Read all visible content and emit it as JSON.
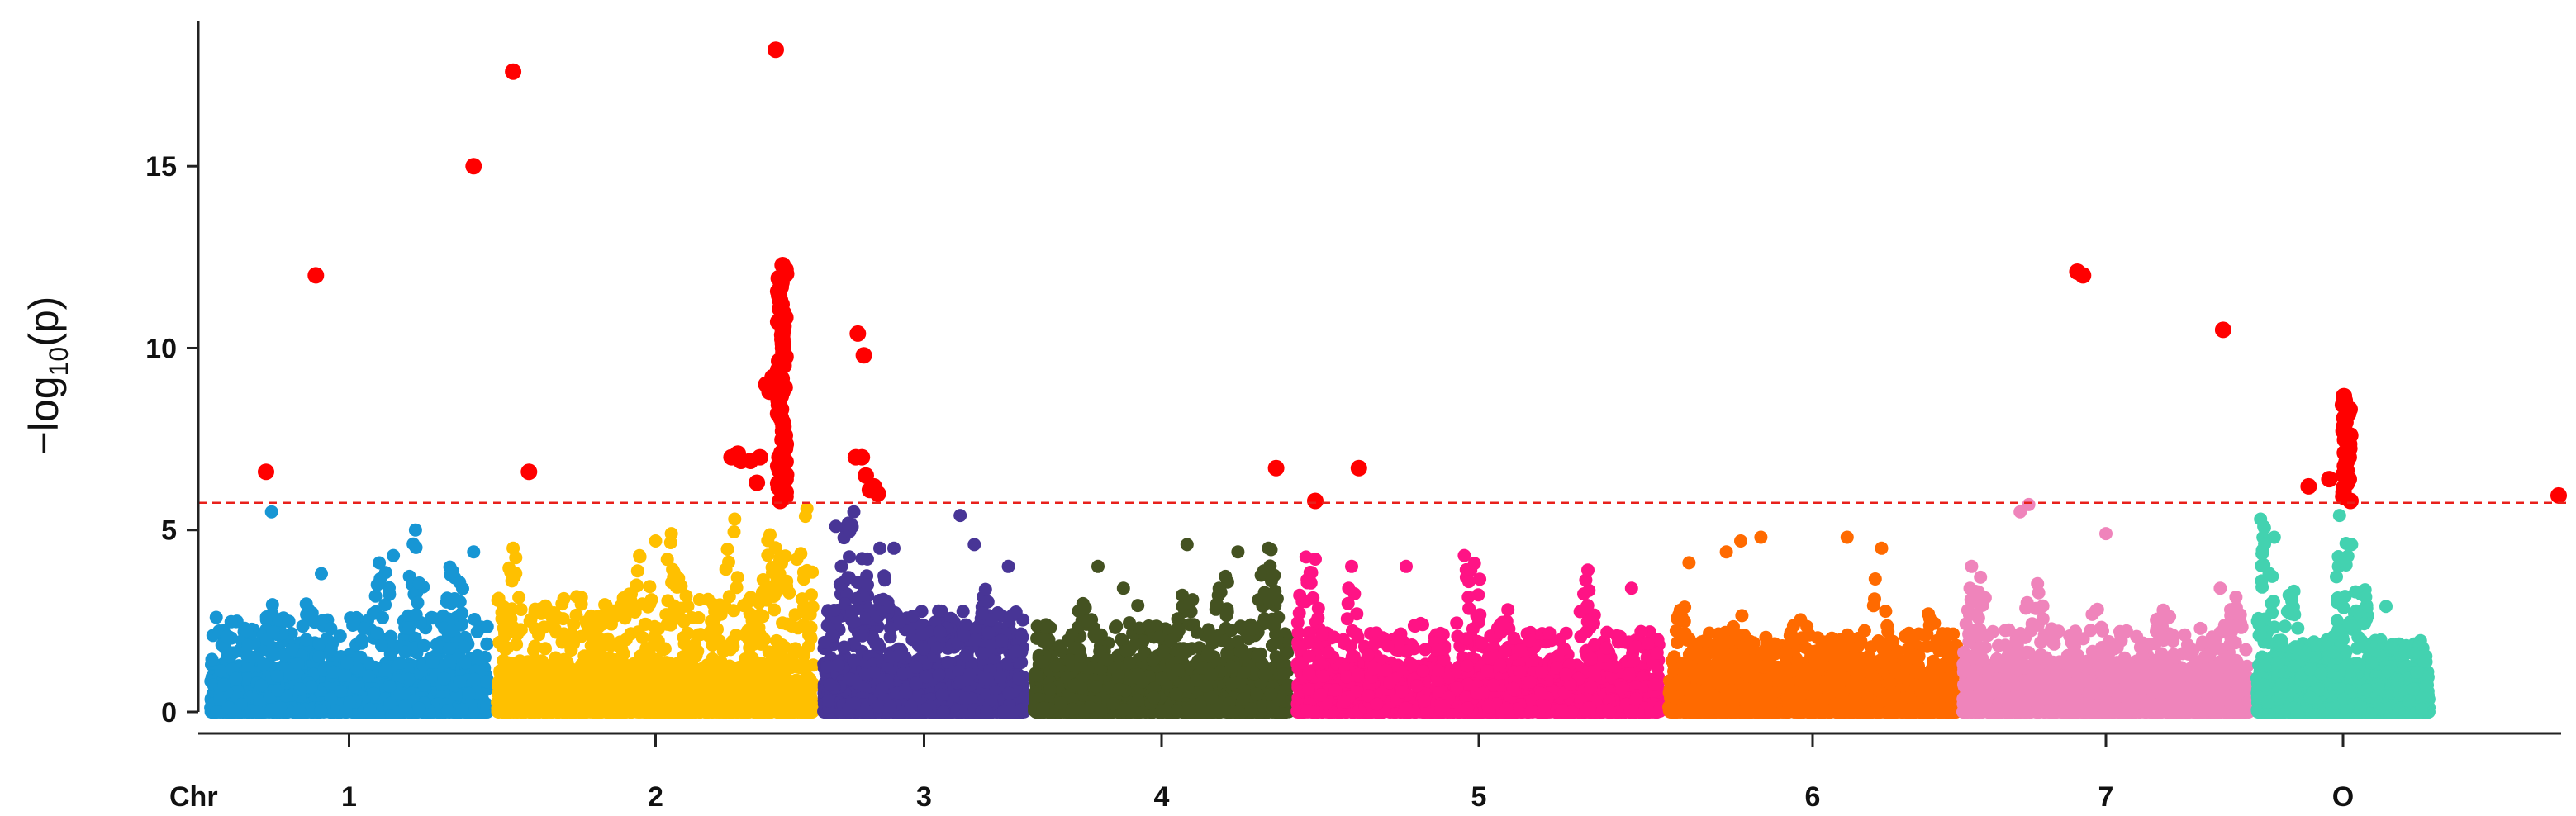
{
  "chart_data": {
    "type": "scatter",
    "subtype": "manhattan",
    "title": "",
    "xlabel": "",
    "ylabel": "−log10(p)",
    "ylabel_parts": {
      "prefix": "−log",
      "subscript": "10",
      "suffix": "(p)"
    },
    "x_axis_prefix": "Chr",
    "ylim": [
      0,
      19
    ],
    "yticks": [
      0,
      5,
      10,
      15
    ],
    "grid": false,
    "threshold": {
      "value": 5.75,
      "color": "#e8201b",
      "style": "dashed"
    },
    "significant_color": "#ff0000",
    "chromosomes": [
      {
        "label": "1",
        "color": "#1796d4",
        "typical_max": 2.6,
        "peak_max": 5.0,
        "peaks": [
          [
            0.22,
            3.0
          ],
          [
            0.35,
            3.2
          ],
          [
            0.55,
            2.5
          ],
          [
            0.62,
            4.3
          ],
          [
            0.75,
            5.0
          ],
          [
            0.88,
            4.3
          ]
        ],
        "top_points": [
          [
            0.02,
            2.6
          ],
          [
            0.22,
            5.5
          ],
          [
            0.4,
            3.8
          ],
          [
            0.66,
            4.3
          ],
          [
            0.74,
            5.0
          ],
          [
            0.95,
            4.4
          ]
        ],
        "significant": [
          [
            0.2,
            6.6
          ],
          [
            0.38,
            12.0
          ],
          [
            0.95,
            15.0
          ]
        ]
      },
      {
        "label": "2",
        "color": "#ffc000",
        "typical_max": 3.2,
        "peak_max": 5.6,
        "peaks": [
          [
            0.05,
            4.4
          ],
          [
            0.45,
            4.4
          ],
          [
            0.55,
            4.9
          ],
          [
            0.75,
            5.2
          ],
          [
            0.88,
            5.6
          ],
          [
            0.98,
            5.6
          ]
        ],
        "top_points": [
          [
            0.05,
            4.5
          ],
          [
            0.5,
            4.7
          ],
          [
            0.55,
            4.9
          ],
          [
            0.75,
            5.3
          ]
        ],
        "significant": [
          [
            0.05,
            17.6
          ],
          [
            0.1,
            6.6
          ],
          [
            0.74,
            7.0
          ],
          [
            0.76,
            7.1
          ],
          [
            0.77,
            6.9
          ]
        ],
        "column": {
          "x": 0.9,
          "from": 5.8,
          "to": 12.3,
          "extra": [
            [
              0.88,
              18.2
            ],
            [
              0.85,
              9.0
            ],
            [
              0.86,
              8.8
            ],
            [
              0.87,
              9.2
            ],
            [
              0.83,
              7.0
            ],
            [
              0.8,
              6.9
            ],
            [
              0.82,
              6.3
            ]
          ]
        }
      },
      {
        "label": "3",
        "color": "#483596",
        "typical_max": 2.8,
        "peak_max": 5.8,
        "peaks": [
          [
            0.12,
            5.8
          ],
          [
            0.2,
            4.6
          ],
          [
            0.3,
            3.9
          ],
          [
            0.45,
            2.4
          ],
          [
            0.62,
            2.6
          ],
          [
            0.8,
            3.4
          ]
        ],
        "top_points": [
          [
            0.06,
            5.1
          ],
          [
            0.15,
            5.5
          ],
          [
            0.28,
            4.5
          ],
          [
            0.35,
            4.5
          ],
          [
            0.68,
            5.4
          ],
          [
            0.75,
            4.6
          ],
          [
            0.92,
            4.0
          ]
        ],
        "significant": [
          [
            0.17,
            10.4
          ],
          [
            0.2,
            9.8
          ],
          [
            0.16,
            7.0
          ],
          [
            0.19,
            7.0
          ],
          [
            0.21,
            6.5
          ],
          [
            0.23,
            6.1
          ],
          [
            0.25,
            6.2
          ],
          [
            0.27,
            6.0
          ]
        ]
      },
      {
        "label": "4",
        "color": "#445221",
        "typical_max": 2.4,
        "peak_max": 4.6,
        "peaks": [
          [
            0.2,
            3.4
          ],
          [
            0.4,
            3.0
          ],
          [
            0.6,
            3.6
          ],
          [
            0.75,
            4.0
          ],
          [
            0.92,
            4.6
          ]
        ],
        "top_points": [
          [
            0.25,
            4.0
          ],
          [
            0.35,
            3.4
          ],
          [
            0.6,
            4.6
          ],
          [
            0.8,
            4.4
          ],
          [
            0.92,
            4.5
          ]
        ],
        "significant": [
          [
            0.95,
            6.7
          ]
        ]
      },
      {
        "label": "5",
        "color": "#ff1385",
        "typical_max": 2.2,
        "peak_max": 4.3,
        "peaks": [
          [
            0.02,
            4.3
          ],
          [
            0.15,
            3.5
          ],
          [
            0.35,
            3.0
          ],
          [
            0.48,
            4.2
          ],
          [
            0.58,
            3.0
          ],
          [
            0.8,
            3.9
          ],
          [
            0.95,
            2.8
          ]
        ],
        "top_points": [
          [
            0.05,
            4.2
          ],
          [
            0.15,
            4.0
          ],
          [
            0.3,
            4.0
          ],
          [
            0.46,
            4.3
          ],
          [
            0.8,
            3.9
          ],
          [
            0.92,
            3.4
          ]
        ],
        "significant": [
          [
            0.05,
            5.8
          ],
          [
            0.17,
            6.7
          ]
        ]
      },
      {
        "label": "6",
        "color": "#ff6a00",
        "typical_max": 2.2,
        "peak_max": 3.8,
        "peaks": [
          [
            0.05,
            3.0
          ],
          [
            0.25,
            3.2
          ],
          [
            0.45,
            3.0
          ],
          [
            0.72,
            3.8
          ],
          [
            0.9,
            3.0
          ]
        ],
        "top_points": [
          [
            0.07,
            4.1
          ],
          [
            0.2,
            4.4
          ],
          [
            0.25,
            4.7
          ],
          [
            0.32,
            4.8
          ],
          [
            0.62,
            4.8
          ],
          [
            0.74,
            4.5
          ]
        ],
        "significant": []
      },
      {
        "label": "7",
        "color": "#ef84bb",
        "typical_max": 2.3,
        "peak_max": 4.0,
        "peaks": [
          [
            0.05,
            4.0
          ],
          [
            0.25,
            3.8
          ],
          [
            0.45,
            3.2
          ],
          [
            0.7,
            3.0
          ],
          [
            0.95,
            3.4
          ]
        ],
        "top_points": [
          [
            0.03,
            4.0
          ],
          [
            0.2,
            5.5
          ],
          [
            0.23,
            5.7
          ],
          [
            0.5,
            4.9
          ],
          [
            0.9,
            3.4
          ]
        ],
        "significant": [
          [
            0.4,
            12.1
          ],
          [
            0.42,
            12.0
          ],
          [
            0.91,
            10.5
          ]
        ]
      },
      {
        "label": "O",
        "color": "#43d2b0",
        "typical_max": 2.0,
        "peak_max": 5.4,
        "peaks": [
          [
            0.05,
            5.4
          ],
          [
            0.2,
            3.5
          ],
          [
            0.5,
            5.4
          ],
          [
            0.6,
            4.2
          ],
          [
            0.8,
            2.2
          ]
        ],
        "top_points": [
          [
            0.02,
            5.3
          ],
          [
            0.1,
            4.8
          ],
          [
            0.48,
            5.4
          ],
          [
            0.55,
            4.6
          ],
          [
            0.75,
            2.9
          ],
          [
            0.98,
            1.4
          ]
        ],
        "significant": [
          [
            0.3,
            6.2
          ],
          [
            0.42,
            6.4
          ]
        ],
        "column": {
          "x": 0.52,
          "from": 5.8,
          "to": 8.7,
          "extra": []
        }
      }
    ],
    "outlier_points": [
      {
        "x_fraction_after_last": 0.95,
        "y": 5.95,
        "color": "#ff0000"
      }
    ]
  }
}
